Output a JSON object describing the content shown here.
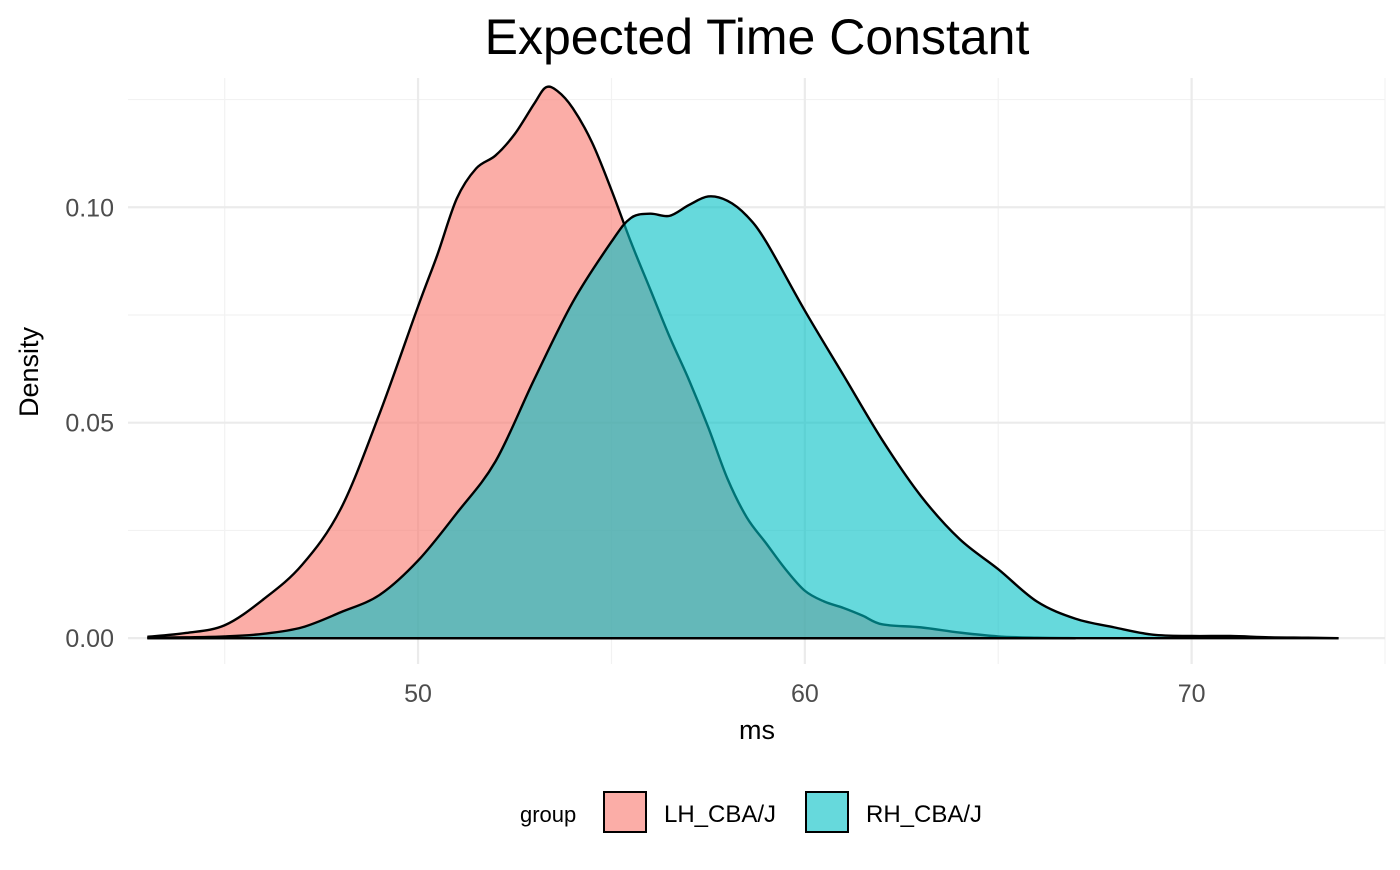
{
  "chart_data": {
    "type": "area",
    "subtype": "density",
    "title": "Expected Time Constant",
    "xlabel": "ms",
    "ylabel": "Density",
    "xlim": [
      42.5,
      75.0
    ],
    "ylim": [
      -0.006,
      0.13
    ],
    "x_ticks": [
      50,
      60,
      70
    ],
    "x_tick_labels": [
      "50",
      "60",
      "70"
    ],
    "x_minor_ticks": [
      45,
      55,
      65,
      75
    ],
    "y_ticks": [
      0.0,
      0.05,
      0.1
    ],
    "y_tick_labels": [
      "0.00",
      "0.05",
      "0.10"
    ],
    "y_minor_ticks": [
      0.025,
      0.075,
      0.125
    ],
    "grid": true,
    "legend": {
      "position": "bottom",
      "title": "group"
    },
    "series": [
      {
        "name": "LH_CBA/J",
        "color": "#F8766D",
        "fill_opacity": 0.6,
        "points": [
          [
            43.0,
            0.0003
          ],
          [
            44.0,
            0.0012
          ],
          [
            45.0,
            0.003
          ],
          [
            46.0,
            0.009
          ],
          [
            47.0,
            0.017
          ],
          [
            48.0,
            0.03
          ],
          [
            49.0,
            0.052
          ],
          [
            50.0,
            0.077
          ],
          [
            50.5,
            0.089
          ],
          [
            51.0,
            0.102
          ],
          [
            51.5,
            0.109
          ],
          [
            52.0,
            0.112
          ],
          [
            52.5,
            0.117
          ],
          [
            53.0,
            0.124
          ],
          [
            53.3,
            0.1278
          ],
          [
            53.6,
            0.127
          ],
          [
            54.0,
            0.123
          ],
          [
            54.5,
            0.115
          ],
          [
            55.0,
            0.104
          ],
          [
            55.5,
            0.092
          ],
          [
            56.0,
            0.081
          ],
          [
            56.5,
            0.07
          ],
          [
            57.0,
            0.06
          ],
          [
            57.5,
            0.049
          ],
          [
            58.0,
            0.037
          ],
          [
            58.5,
            0.028
          ],
          [
            59.0,
            0.022
          ],
          [
            59.5,
            0.016
          ],
          [
            60.0,
            0.011
          ],
          [
            60.5,
            0.0085
          ],
          [
            61.0,
            0.007
          ],
          [
            61.5,
            0.0052
          ],
          [
            62.0,
            0.0032
          ],
          [
            63.0,
            0.0025
          ],
          [
            64.0,
            0.0013
          ],
          [
            65.0,
            0.0004
          ],
          [
            66.0,
            0.0001
          ],
          [
            67.0,
            0.0
          ]
        ]
      },
      {
        "name": "RH_CBA/J",
        "color": "#00BFC4",
        "fill_opacity": 0.6,
        "points": [
          [
            43.0,
            0.0001
          ],
          [
            44.0,
            0.0002
          ],
          [
            45.0,
            0.0004
          ],
          [
            46.0,
            0.001
          ],
          [
            47.0,
            0.0025
          ],
          [
            48.0,
            0.006
          ],
          [
            49.0,
            0.01
          ],
          [
            50.0,
            0.018
          ],
          [
            51.0,
            0.029
          ],
          [
            52.0,
            0.041
          ],
          [
            53.0,
            0.06
          ],
          [
            54.0,
            0.078
          ],
          [
            55.0,
            0.092
          ],
          [
            55.5,
            0.0975
          ],
          [
            56.0,
            0.0985
          ],
          [
            56.5,
            0.098
          ],
          [
            57.0,
            0.1005
          ],
          [
            57.5,
            0.1025
          ],
          [
            58.0,
            0.1015
          ],
          [
            58.5,
            0.098
          ],
          [
            59.0,
            0.092
          ],
          [
            60.0,
            0.076
          ],
          [
            61.0,
            0.061
          ],
          [
            62.0,
            0.046
          ],
          [
            63.0,
            0.033
          ],
          [
            64.0,
            0.023
          ],
          [
            65.0,
            0.016
          ],
          [
            66.0,
            0.0085
          ],
          [
            67.0,
            0.0045
          ],
          [
            68.0,
            0.0025
          ],
          [
            69.0,
            0.0008
          ],
          [
            70.0,
            0.0005
          ],
          [
            71.0,
            0.0005
          ],
          [
            72.0,
            0.0002
          ],
          [
            73.0,
            0.0001
          ],
          [
            73.8,
            0.0
          ]
        ]
      }
    ]
  }
}
